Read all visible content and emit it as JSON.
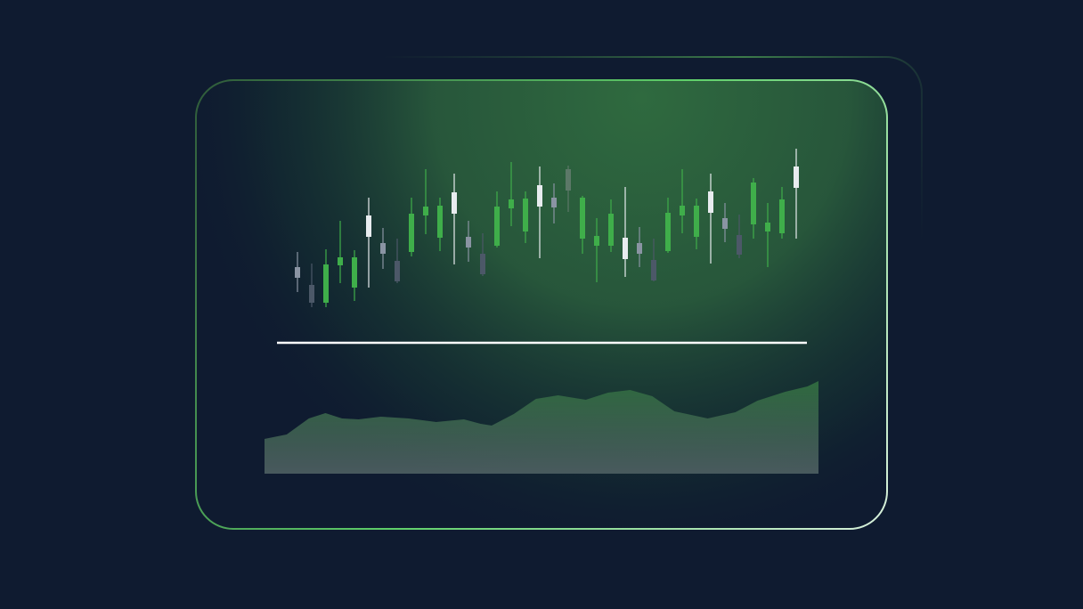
{
  "chart_data": [
    {
      "type": "candlestick",
      "open": [
        88,
        60,
        60,
        102,
        77,
        134,
        115,
        84,
        117,
        158,
        133,
        160,
        122,
        92,
        124,
        166,
        140,
        168,
        167,
        186,
        132,
        124,
        124,
        109,
        115,
        85,
        118,
        158,
        134,
        161,
        143,
        114,
        148,
        140,
        138,
        189
      ],
      "close": [
        100,
        80,
        103,
        111,
        111,
        158,
        127,
        107,
        160,
        168,
        169,
        184,
        134,
        115,
        168,
        176,
        177,
        192,
        178,
        210,
        178,
        135,
        160,
        133,
        127,
        108,
        161,
        169,
        169,
        185,
        155,
        136,
        195,
        150,
        176,
        213
      ],
      "high": [
        117,
        104,
        120,
        152,
        119,
        178,
        144,
        132,
        178,
        210,
        178,
        205,
        152,
        138,
        185,
        218,
        185,
        213,
        194,
        214,
        180,
        155,
        176,
        190,
        145,
        132,
        178,
        210,
        177,
        205,
        172,
        159,
        200,
        172,
        190,
        233
      ],
      "low": [
        72,
        55,
        55,
        82,
        62,
        77,
        98,
        82,
        112,
        137,
        118,
        103,
        106,
        90,
        122,
        146,
        127,
        110,
        149,
        162,
        115,
        83,
        117,
        89,
        100,
        84,
        116,
        138,
        120,
        104,
        128,
        110,
        132,
        100,
        132,
        132
      ],
      "colors": [
        "#8a94a3",
        "#4c5868",
        "#3fae4a",
        "#3fae4a",
        "#3fae4a",
        "#e8ecef",
        "#8a94a3",
        "#4c5868",
        "#3fae4a",
        "#3fae4a",
        "#3fae4a",
        "#e8ecef",
        "#8a94a3",
        "#4c5868",
        "#3fae4a",
        "#3fae4a",
        "#3fae4a",
        "#e8ecef",
        "#8a94a3",
        "#5c7868",
        "#3fae4a",
        "#3fae4a",
        "#3fae4a",
        "#e8ecef",
        "#8a94a3",
        "#4c5868",
        "#3fae4a",
        "#3fae4a",
        "#3fae4a",
        "#e8ecef",
        "#8a94a3",
        "#4c5868",
        "#3fae4a",
        "#3fae4a",
        "#3fae4a",
        "#e8ecef"
      ],
      "ylim": [
        0,
        240
      ]
    },
    {
      "type": "area",
      "x": [
        0,
        4,
        8,
        11,
        14,
        17,
        21,
        26,
        31,
        36,
        39,
        41,
        45,
        49,
        53,
        58,
        62,
        66,
        70,
        74,
        80,
        85,
        89,
        94,
        98,
        100
      ],
      "values": [
        39,
        44,
        62,
        68,
        62,
        61,
        64,
        62,
        58,
        61,
        56,
        54,
        67,
        84,
        88,
        83,
        91,
        94,
        87,
        70,
        62,
        69,
        82,
        92,
        98,
        104
      ],
      "color": "#2f6a3f",
      "xlim": [
        0,
        100
      ],
      "ylim": [
        0,
        120
      ]
    }
  ]
}
